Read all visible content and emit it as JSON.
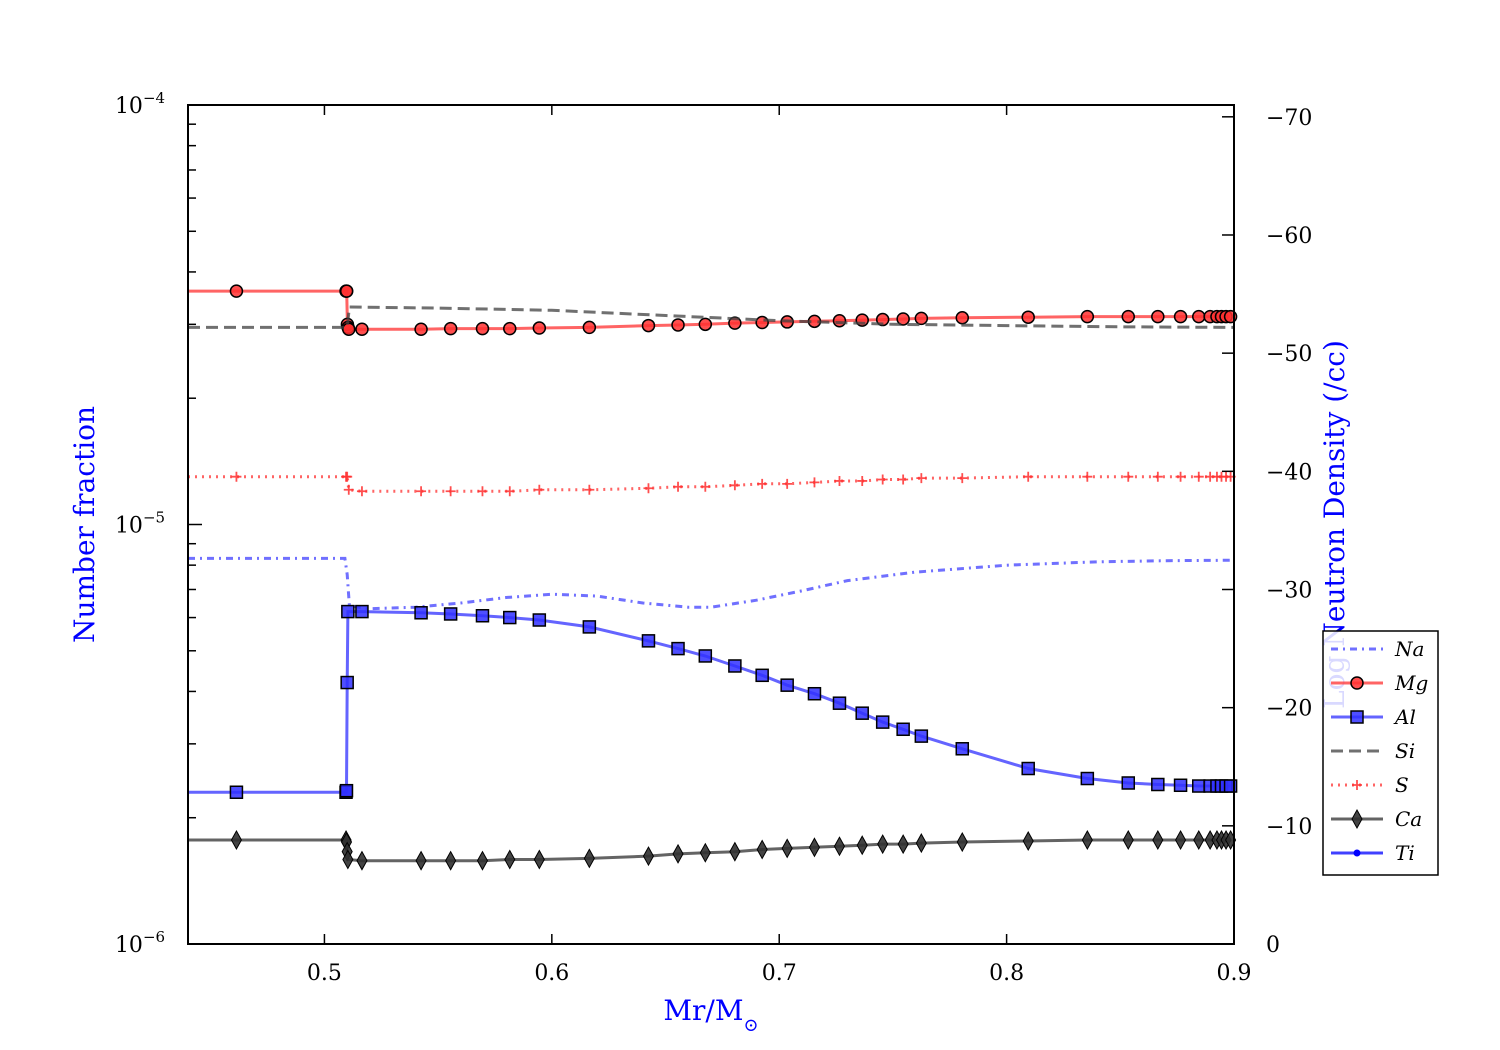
{
  "chart_data": {
    "type": "line",
    "xlabel": "Mr/M",
    "xlabel_subscript": "⊙",
    "ylabel": "Number fraction",
    "y2label": "Log Neutron Density (/cc)",
    "xlim": [
      0.44,
      0.9
    ],
    "ylim": [
      1e-06,
      0.0001
    ],
    "yscale": "log",
    "y2lim": [
      0,
      -71
    ],
    "x_ticks": [
      {
        "value": 0.5,
        "label": "0.5"
      },
      {
        "value": 0.6,
        "label": "0.6"
      },
      {
        "value": 0.7,
        "label": "0.7"
      },
      {
        "value": 0.8,
        "label": "0.8"
      },
      {
        "value": 0.9,
        "label": "0.9"
      }
    ],
    "y_ticks": [
      {
        "value": 1e-06,
        "base": "10",
        "exp": "−6"
      },
      {
        "value": 1e-05,
        "base": "10",
        "exp": "−5"
      },
      {
        "value": 0.0001,
        "base": "10",
        "exp": "−4"
      }
    ],
    "y2_ticks": [
      {
        "value": 0,
        "label": "0"
      },
      {
        "value": -10,
        "label": "−10"
      },
      {
        "value": -20,
        "label": "−20"
      },
      {
        "value": -30,
        "label": "−30"
      },
      {
        "value": -40,
        "label": "−40"
      },
      {
        "value": -50,
        "label": "−50"
      },
      {
        "value": -60,
        "label": "−60"
      },
      {
        "value": -70,
        "label": "−70"
      }
    ],
    "legend_position": "right",
    "series": [
      {
        "name": "Na",
        "color": "#4040ff",
        "line": "dashdot",
        "marker": "none",
        "x": [
          0.44,
          0.509,
          0.51,
          0.511,
          0.52,
          0.54,
          0.56,
          0.58,
          0.6,
          0.62,
          0.64,
          0.66,
          0.67,
          0.69,
          0.71,
          0.73,
          0.76,
          0.8,
          0.84,
          0.87,
          0.9
        ],
        "y": [
          8.3e-06,
          8.3e-06,
          7.6e-06,
          6.4e-06,
          6.3e-06,
          6.35e-06,
          6.5e-06,
          6.7e-06,
          6.82e-06,
          6.75e-06,
          6.5e-06,
          6.35e-06,
          6.35e-06,
          6.6e-06,
          6.95e-06,
          7.35e-06,
          7.7e-06,
          8e-06,
          8.15e-06,
          8.2e-06,
          8.22e-06
        ]
      },
      {
        "name": "Mg",
        "color": "#ff3030",
        "line": "solid",
        "marker": "circle",
        "x": [
          0.44,
          0.4613,
          0.5095,
          0.5098,
          0.5101,
          0.5104,
          0.5107,
          0.5165,
          0.5425,
          0.5555,
          0.5695,
          0.5815,
          0.5945,
          0.6165,
          0.6425,
          0.6555,
          0.6675,
          0.6805,
          0.6925,
          0.7035,
          0.7155,
          0.7265,
          0.7365,
          0.7455,
          0.7545,
          0.7625,
          0.7805,
          0.8095,
          0.8355,
          0.8535,
          0.8665,
          0.8765,
          0.8845,
          0.8895,
          0.8925,
          0.8945,
          0.8965,
          0.8985
        ],
        "y": [
          3.6e-05,
          3.6e-05,
          3.6e-05,
          3.6e-05,
          3e-05,
          2.95e-05,
          2.92e-05,
          2.92e-05,
          2.92e-05,
          2.93e-05,
          2.93e-05,
          2.93e-05,
          2.94e-05,
          2.95e-05,
          2.98e-05,
          2.99e-05,
          3e-05,
          3.02e-05,
          3.03e-05,
          3.04e-05,
          3.05e-05,
          3.06e-05,
          3.07e-05,
          3.08e-05,
          3.09e-05,
          3.1e-05,
          3.11e-05,
          3.12e-05,
          3.13e-05,
          3.13e-05,
          3.13e-05,
          3.13e-05,
          3.13e-05,
          3.13e-05,
          3.13e-05,
          3.13e-05,
          3.13e-05,
          3.13e-05
        ]
      },
      {
        "name": "Al",
        "color": "#3030ff",
        "line": "solid",
        "marker": "square",
        "x": [
          0.44,
          0.4613,
          0.5095,
          0.5097,
          0.51,
          0.5103,
          0.5165,
          0.5425,
          0.5555,
          0.5695,
          0.5815,
          0.5945,
          0.6165,
          0.6425,
          0.6555,
          0.6675,
          0.6805,
          0.6925,
          0.7035,
          0.7155,
          0.7265,
          0.7365,
          0.7455,
          0.7545,
          0.7625,
          0.7805,
          0.8095,
          0.8355,
          0.8535,
          0.8665,
          0.8765,
          0.8845,
          0.8895,
          0.8925,
          0.8945,
          0.8965,
          0.8985
        ],
        "y": [
          2.3e-06,
          2.3e-06,
          2.3e-06,
          2.32e-06,
          4.2e-06,
          6.2e-06,
          6.2e-06,
          6.16e-06,
          6.12e-06,
          6.06e-06,
          6e-06,
          5.92e-06,
          5.7e-06,
          5.28e-06,
          5.06e-06,
          4.86e-06,
          4.6e-06,
          4.37e-06,
          4.14e-06,
          3.95e-06,
          3.75e-06,
          3.55e-06,
          3.38e-06,
          3.25e-06,
          3.13e-06,
          2.92e-06,
          2.62e-06,
          2.48e-06,
          2.42e-06,
          2.4e-06,
          2.39e-06,
          2.38e-06,
          2.38e-06,
          2.38e-06,
          2.38e-06,
          2.38e-06,
          2.38e-06
        ]
      },
      {
        "name": "Si",
        "color": "#404040",
        "line": "dashed",
        "marker": "none",
        "x": [
          0.44,
          0.51,
          0.511,
          0.55,
          0.6,
          0.65,
          0.7,
          0.75,
          0.8,
          0.85,
          0.9
        ],
        "y": [
          2.95e-05,
          2.95e-05,
          3.3e-05,
          3.28e-05,
          3.24e-05,
          3.15e-05,
          3.06e-05,
          3e-05,
          2.98e-05,
          2.96e-05,
          2.95e-05
        ]
      },
      {
        "name": "S",
        "color": "#ff3030",
        "line": "dotted",
        "marker": "plus",
        "x": [
          0.44,
          0.4613,
          0.5095,
          0.51,
          0.5107,
          0.5165,
          0.5425,
          0.5555,
          0.5695,
          0.5815,
          0.5945,
          0.6165,
          0.6425,
          0.6555,
          0.6675,
          0.6805,
          0.6925,
          0.7035,
          0.7155,
          0.7265,
          0.7365,
          0.7455,
          0.7545,
          0.7625,
          0.7805,
          0.8095,
          0.8355,
          0.8535,
          0.8665,
          0.8765,
          0.8845,
          0.8895,
          0.8925,
          0.8945,
          0.8965,
          0.8985
        ],
        "y": [
          1.3e-05,
          1.3e-05,
          1.3e-05,
          1.3e-05,
          1.21e-05,
          1.2e-05,
          1.2e-05,
          1.2e-05,
          1.2e-05,
          1.2e-05,
          1.21e-05,
          1.21e-05,
          1.22e-05,
          1.23e-05,
          1.23e-05,
          1.24e-05,
          1.25e-05,
          1.25e-05,
          1.26e-05,
          1.27e-05,
          1.27e-05,
          1.28e-05,
          1.28e-05,
          1.29e-05,
          1.29e-05,
          1.3e-05,
          1.3e-05,
          1.3e-05,
          1.3e-05,
          1.3e-05,
          1.3e-05,
          1.3e-05,
          1.3e-05,
          1.3e-05,
          1.3e-05,
          1.3e-05
        ]
      },
      {
        "name": "Ca",
        "color": "#303030",
        "line": "solid",
        "marker": "diamond",
        "x": [
          0.44,
          0.4613,
          0.5095,
          0.5097,
          0.51,
          0.5103,
          0.5165,
          0.5425,
          0.5555,
          0.5695,
          0.5815,
          0.5945,
          0.6165,
          0.6425,
          0.6555,
          0.6675,
          0.6805,
          0.6925,
          0.7035,
          0.7155,
          0.7265,
          0.7365,
          0.7455,
          0.7545,
          0.7625,
          0.7805,
          0.8095,
          0.8355,
          0.8535,
          0.8665,
          0.8765,
          0.8845,
          0.8895,
          0.8925,
          0.8945,
          0.8965,
          0.8985
        ],
        "y": [
          1.77e-06,
          1.77e-06,
          1.77e-06,
          1.75e-06,
          1.66e-06,
          1.59e-06,
          1.58e-06,
          1.58e-06,
          1.58e-06,
          1.58e-06,
          1.59e-06,
          1.59e-06,
          1.6e-06,
          1.62e-06,
          1.64e-06,
          1.65e-06,
          1.66e-06,
          1.68e-06,
          1.69e-06,
          1.7e-06,
          1.71e-06,
          1.72e-06,
          1.73e-06,
          1.73e-06,
          1.74e-06,
          1.75e-06,
          1.76e-06,
          1.77e-06,
          1.77e-06,
          1.77e-06,
          1.77e-06,
          1.77e-06,
          1.77e-06,
          1.77e-06,
          1.77e-06,
          1.77e-06,
          1.77e-06
        ]
      },
      {
        "name": "Ti",
        "color": "#0000ff",
        "line": "solid",
        "marker": "dot",
        "x": [],
        "y": []
      }
    ]
  }
}
